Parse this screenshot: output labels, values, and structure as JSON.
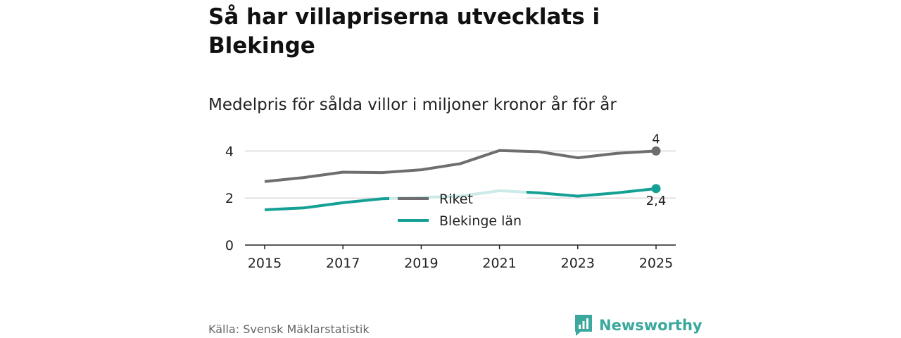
{
  "title": "Så har villapriserna utvecklats i Blekinge",
  "subtitle": "Medelpris för sålda villor i miljoner kronor år för år",
  "source": "Källa: Svensk Mäklarstatistik",
  "brand": {
    "name": "Newsworthy",
    "color": "#3aa89c",
    "icon": "bar-chart-speech-bubble-icon"
  },
  "colors": {
    "riket": "#6e6e70",
    "blekinge": "#15a095",
    "grid": "#d9d9d9",
    "axis": "#222222"
  },
  "chart_data": {
    "type": "line",
    "title": "Så har villapriserna utvecklats i Blekinge",
    "subtitle": "Medelpris för sålda villor i miljoner kronor år för år",
    "xlabel": "",
    "ylabel": "",
    "x": [
      2015,
      2016,
      2017,
      2018,
      2019,
      2020,
      2021,
      2022,
      2023,
      2024,
      2025
    ],
    "xticks": [
      "2015",
      "2017",
      "2019",
      "2021",
      "2023",
      "2025"
    ],
    "yticks": [
      "0",
      "2",
      "4"
    ],
    "ylim": [
      0,
      4.5
    ],
    "grid": "horizontal",
    "legend_position": "center",
    "series": [
      {
        "name": "Riket",
        "color": "#6e6e70",
        "values": [
          2.7,
          2.87,
          3.1,
          3.08,
          3.2,
          3.46,
          4.02,
          3.97,
          3.71,
          3.9,
          4.0
        ],
        "end_label": "4"
      },
      {
        "name": "Blekinge län",
        "color": "#15a095",
        "values": [
          1.5,
          1.58,
          1.8,
          1.97,
          2.02,
          2.08,
          2.31,
          2.22,
          2.08,
          2.22,
          2.4
        ],
        "end_label": "2,4"
      }
    ]
  }
}
